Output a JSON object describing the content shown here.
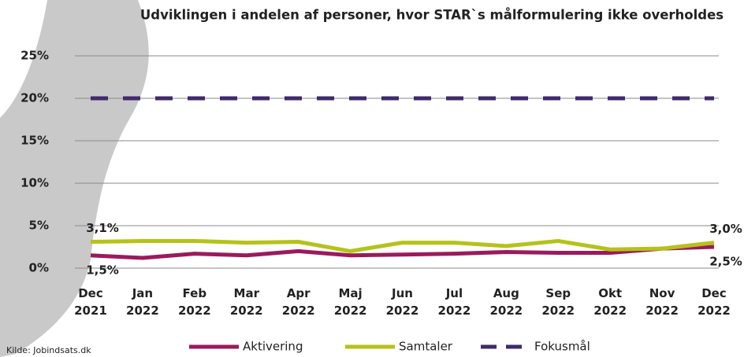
{
  "chart_data": {
    "type": "line",
    "title": "Udviklingen i andelen af personer, hvor STAR`s målformulering ikke overholdes",
    "source": "Kilde: Jobindsats.dk",
    "categories": [
      "Dec 2021",
      "Jan 2022",
      "Feb 2022",
      "Mar 2022",
      "Apr 2022",
      "Maj 2022",
      "Jun 2022",
      "Jul 2022",
      "Aug 2022",
      "Sep 2022",
      "Okt 2022",
      "Nov 2022",
      "Dec 2022"
    ],
    "series": [
      {
        "name": "Aktivering",
        "color": "#9b1a5c",
        "dashed": false,
        "values": [
          1.5,
          1.2,
          1.7,
          1.5,
          2.0,
          1.5,
          1.6,
          1.7,
          1.9,
          1.8,
          1.8,
          2.3,
          2.5
        ],
        "value_labels": [
          "1,5%",
          null,
          null,
          null,
          null,
          null,
          null,
          null,
          null,
          null,
          null,
          null,
          "2,5%"
        ]
      },
      {
        "name": "Samtaler",
        "color": "#b5c21a",
        "dashed": false,
        "values": [
          3.1,
          3.2,
          3.2,
          3.0,
          3.1,
          2.0,
          3.0,
          3.0,
          2.6,
          3.2,
          2.2,
          2.3,
          3.0
        ],
        "value_labels": [
          "3,1%",
          null,
          null,
          null,
          null,
          null,
          null,
          null,
          null,
          null,
          null,
          null,
          "3,0%"
        ]
      },
      {
        "name": "Fokusmål",
        "color": "#3f2a6b",
        "dashed": true,
        "values": [
          20,
          20,
          20,
          20,
          20,
          20,
          20,
          20,
          20,
          20,
          20,
          20,
          20
        ]
      }
    ],
    "ylim": [
      0,
      25
    ],
    "yticks": [
      {
        "value": 0,
        "label": "0%"
      },
      {
        "value": 5,
        "label": "5%"
      },
      {
        "value": 10,
        "label": "10%"
      },
      {
        "value": 15,
        "label": "15%"
      },
      {
        "value": 20,
        "label": "20%"
      },
      {
        "value": 25,
        "label": "25%"
      }
    ],
    "grid": true
  }
}
